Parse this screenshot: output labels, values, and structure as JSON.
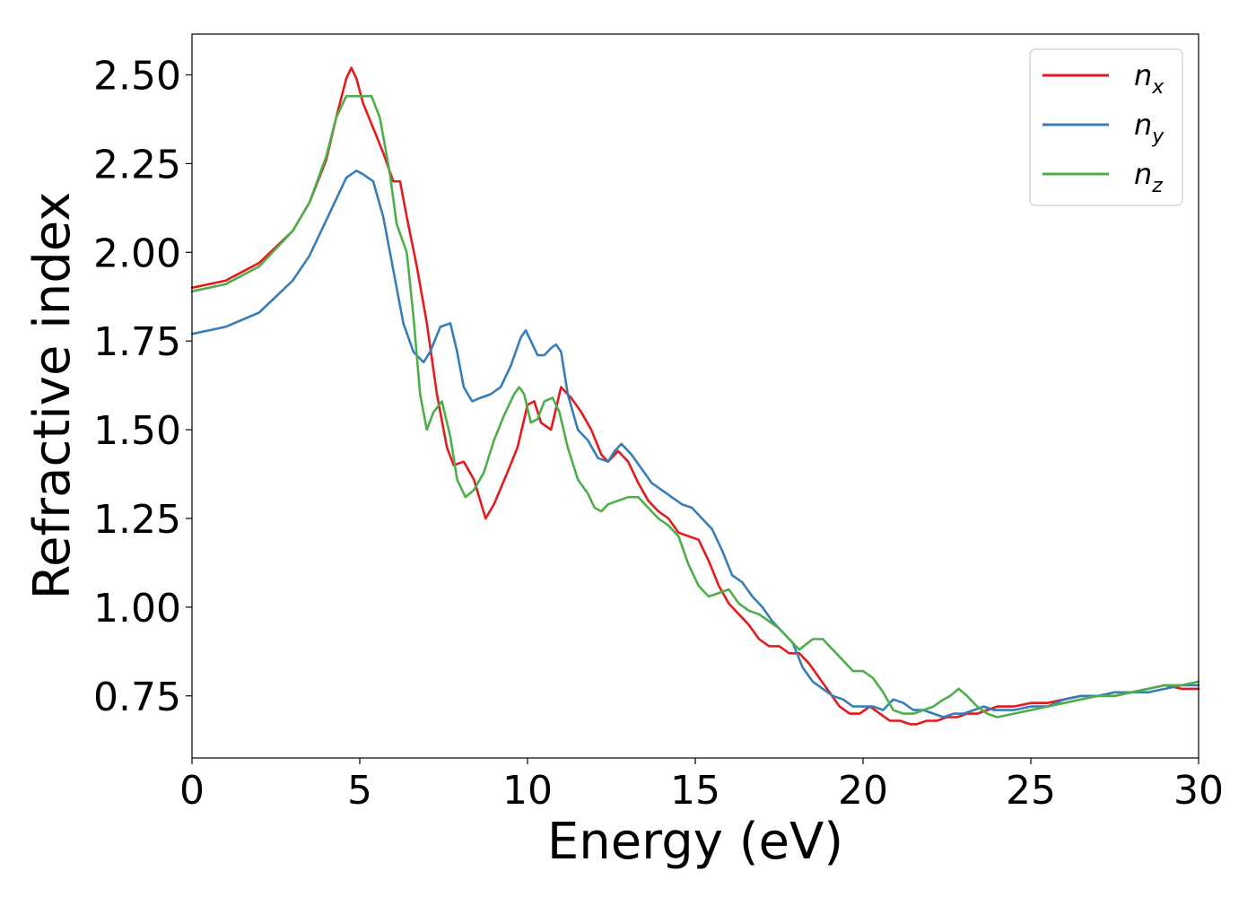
{
  "chart_data": {
    "type": "line",
    "xlabel": "Energy (eV)",
    "ylabel": "Refractive index",
    "xlim": [
      0,
      30
    ],
    "ylim": [
      0.575,
      2.615
    ],
    "xticks": [
      0,
      5,
      10,
      15,
      20,
      25,
      30
    ],
    "xtick_labels": [
      "0",
      "5",
      "10",
      "15",
      "20",
      "25",
      "30"
    ],
    "yticks": [
      0.75,
      1.0,
      1.25,
      1.5,
      1.75,
      2.0,
      2.25,
      2.5
    ],
    "ytick_labels": [
      "0.75",
      "1.00",
      "1.25",
      "1.50",
      "1.75",
      "2.00",
      "2.25",
      "2.50"
    ],
    "grid": false,
    "legend_position": "top-right",
    "series": [
      {
        "name": "n_x",
        "label_main": "n",
        "label_sub": "x",
        "color": "#e41a1c",
        "x": [
          0,
          1,
          2,
          3,
          3.5,
          4,
          4.3,
          4.6,
          4.75,
          4.9,
          5.1,
          5.4,
          5.7,
          6.0,
          6.2,
          6.4,
          6.7,
          7.0,
          7.3,
          7.6,
          7.8,
          8.1,
          8.4,
          8.75,
          9.0,
          9.4,
          9.7,
          10.0,
          10.2,
          10.4,
          10.7,
          11.0,
          11.3,
          11.6,
          11.9,
          12.2,
          12.4,
          12.7,
          13.0,
          13.3,
          13.6,
          13.9,
          14.2,
          14.5,
          14.8,
          15.1,
          15.4,
          15.7,
          16.0,
          16.3,
          16.6,
          16.9,
          17.2,
          17.5,
          17.8,
          18.1,
          18.4,
          18.7,
          19.0,
          19.3,
          19.6,
          19.9,
          20.2,
          20.5,
          20.8,
          21.1,
          21.4,
          21.6,
          21.9,
          22.2,
          22.5,
          22.8,
          23.1,
          23.4,
          23.7,
          24.0,
          24.5,
          25.0,
          25.5,
          26.0,
          26.5,
          27.0,
          27.5,
          28.0,
          28.5,
          29.0,
          29.5,
          30.0
        ],
        "y": [
          1.9,
          1.92,
          1.97,
          2.06,
          2.14,
          2.26,
          2.38,
          2.49,
          2.52,
          2.49,
          2.42,
          2.35,
          2.28,
          2.2,
          2.2,
          2.1,
          1.96,
          1.8,
          1.6,
          1.45,
          1.4,
          1.41,
          1.36,
          1.25,
          1.29,
          1.38,
          1.45,
          1.57,
          1.58,
          1.52,
          1.5,
          1.62,
          1.59,
          1.55,
          1.5,
          1.43,
          1.41,
          1.44,
          1.41,
          1.35,
          1.3,
          1.27,
          1.25,
          1.21,
          1.2,
          1.19,
          1.13,
          1.06,
          1.01,
          0.98,
          0.95,
          0.91,
          0.89,
          0.89,
          0.87,
          0.87,
          0.84,
          0.8,
          0.76,
          0.72,
          0.7,
          0.7,
          0.72,
          0.7,
          0.68,
          0.68,
          0.67,
          0.67,
          0.68,
          0.68,
          0.69,
          0.69,
          0.7,
          0.7,
          0.71,
          0.72,
          0.72,
          0.73,
          0.73,
          0.74,
          0.75,
          0.75,
          0.75,
          0.76,
          0.77,
          0.78,
          0.77,
          0.77
        ]
      },
      {
        "name": "n_y",
        "label_main": "n",
        "label_sub": "y",
        "color": "#377eb8",
        "x": [
          0,
          1,
          2,
          3,
          3.5,
          4,
          4.3,
          4.6,
          4.9,
          5.1,
          5.4,
          5.7,
          6.0,
          6.3,
          6.6,
          6.9,
          7.1,
          7.4,
          7.7,
          7.9,
          8.1,
          8.35,
          8.6,
          8.9,
          9.2,
          9.5,
          9.8,
          9.95,
          10.1,
          10.3,
          10.5,
          10.7,
          10.85,
          11.0,
          11.2,
          11.5,
          11.8,
          12.1,
          12.4,
          12.6,
          12.8,
          13.1,
          13.4,
          13.7,
          14.0,
          14.3,
          14.6,
          14.9,
          15.2,
          15.5,
          15.8,
          16.1,
          16.4,
          16.7,
          17.0,
          17.3,
          17.6,
          17.9,
          18.2,
          18.5,
          18.8,
          19.1,
          19.4,
          19.7,
          20.0,
          20.3,
          20.6,
          20.9,
          21.2,
          21.5,
          21.8,
          22.1,
          22.4,
          22.7,
          23.0,
          23.3,
          23.6,
          23.9,
          24.2,
          24.5,
          25.0,
          25.5,
          26.0,
          26.5,
          27.0,
          27.5,
          28.0,
          28.5,
          29.0,
          29.5,
          30.0
        ],
        "y": [
          1.77,
          1.79,
          1.83,
          1.92,
          1.99,
          2.09,
          2.15,
          2.21,
          2.23,
          2.22,
          2.2,
          2.1,
          1.95,
          1.8,
          1.72,
          1.69,
          1.72,
          1.79,
          1.8,
          1.72,
          1.62,
          1.58,
          1.59,
          1.6,
          1.62,
          1.68,
          1.76,
          1.78,
          1.75,
          1.71,
          1.71,
          1.73,
          1.74,
          1.72,
          1.6,
          1.5,
          1.47,
          1.42,
          1.41,
          1.44,
          1.46,
          1.43,
          1.39,
          1.35,
          1.33,
          1.31,
          1.29,
          1.28,
          1.25,
          1.22,
          1.16,
          1.09,
          1.07,
          1.03,
          1.0,
          0.96,
          0.93,
          0.9,
          0.83,
          0.79,
          0.77,
          0.75,
          0.74,
          0.72,
          0.72,
          0.72,
          0.71,
          0.74,
          0.73,
          0.71,
          0.71,
          0.7,
          0.69,
          0.7,
          0.7,
          0.71,
          0.72,
          0.71,
          0.71,
          0.71,
          0.72,
          0.72,
          0.74,
          0.75,
          0.75,
          0.76,
          0.76,
          0.76,
          0.77,
          0.78,
          0.78
        ]
      },
      {
        "name": "n_z",
        "label_main": "n",
        "label_sub": "z",
        "color": "#4daf4a",
        "x": [
          0,
          1,
          2,
          3,
          3.5,
          4,
          4.3,
          4.6,
          4.8,
          5.0,
          5.2,
          5.35,
          5.6,
          5.9,
          6.1,
          6.4,
          6.6,
          6.8,
          7.0,
          7.2,
          7.45,
          7.7,
          7.9,
          8.15,
          8.4,
          8.7,
          9.0,
          9.3,
          9.6,
          9.75,
          9.9,
          10.1,
          10.3,
          10.5,
          10.75,
          10.95,
          11.2,
          11.5,
          11.8,
          12.0,
          12.2,
          12.4,
          12.7,
          13.0,
          13.3,
          13.6,
          13.9,
          14.2,
          14.5,
          14.8,
          15.1,
          15.4,
          15.7,
          16.0,
          16.3,
          16.6,
          16.9,
          17.2,
          17.5,
          17.8,
          18.1,
          18.5,
          18.8,
          19.1,
          19.4,
          19.7,
          20.0,
          20.3,
          20.6,
          20.9,
          21.2,
          21.5,
          21.8,
          22.1,
          22.4,
          22.6,
          22.85,
          23.1,
          23.4,
          23.7,
          24.0,
          24.5,
          25.0,
          25.5,
          26.0,
          26.5,
          27.0,
          27.5,
          28.0,
          28.5,
          29.0,
          29.5,
          30.0
        ],
        "y": [
          1.89,
          1.91,
          1.96,
          2.06,
          2.14,
          2.27,
          2.38,
          2.44,
          2.44,
          2.44,
          2.44,
          2.44,
          2.38,
          2.22,
          2.08,
          2.0,
          1.82,
          1.6,
          1.5,
          1.55,
          1.58,
          1.48,
          1.36,
          1.31,
          1.33,
          1.38,
          1.47,
          1.54,
          1.6,
          1.62,
          1.6,
          1.52,
          1.53,
          1.58,
          1.59,
          1.55,
          1.45,
          1.36,
          1.32,
          1.28,
          1.27,
          1.29,
          1.3,
          1.31,
          1.31,
          1.28,
          1.25,
          1.23,
          1.2,
          1.12,
          1.06,
          1.03,
          1.04,
          1.05,
          1.01,
          0.99,
          0.98,
          0.96,
          0.94,
          0.91,
          0.88,
          0.91,
          0.91,
          0.88,
          0.85,
          0.82,
          0.82,
          0.8,
          0.76,
          0.71,
          0.7,
          0.7,
          0.71,
          0.72,
          0.74,
          0.75,
          0.77,
          0.75,
          0.72,
          0.7,
          0.69,
          0.7,
          0.71,
          0.72,
          0.73,
          0.74,
          0.75,
          0.75,
          0.76,
          0.77,
          0.78,
          0.78,
          0.79
        ]
      }
    ]
  }
}
